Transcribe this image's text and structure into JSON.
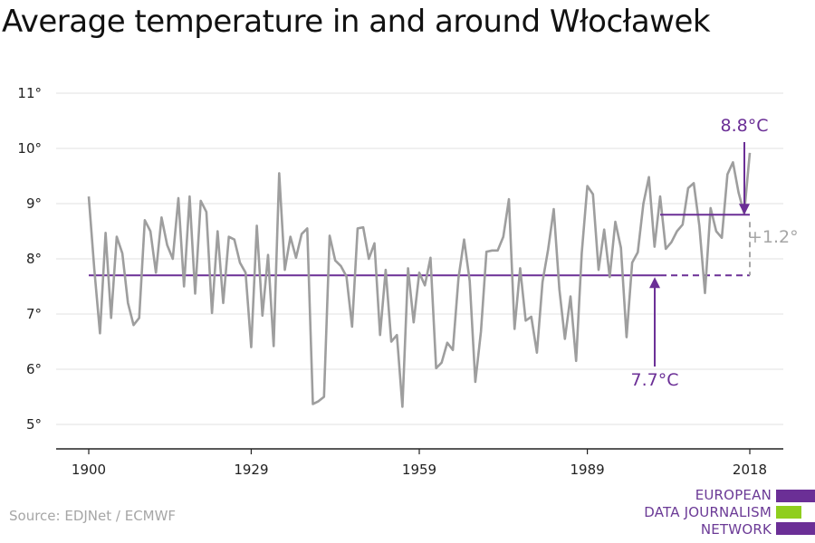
{
  "title": "Average temperature in and around Włocławek",
  "source": "Source: EDJNet / ECMWF",
  "logo": {
    "lines": [
      "EUROPEAN",
      "DATA JOURNALISM",
      "NETWORK"
    ],
    "colors": [
      "#6b2f96",
      "#8fce1e",
      "#6b2f96"
    ]
  },
  "colors": {
    "series": "#9e9e9e",
    "baseline": "#6b2f96",
    "annotation": "#6b2f96",
    "diff": "#a6a6a6",
    "grid": "#e0e0e0",
    "axis": "#222222"
  },
  "chart_data": {
    "type": "line",
    "title": "Average temperature in and around Włocławek",
    "x_ticks": [
      1900,
      1929,
      1959,
      1989,
      2018
    ],
    "y_ticks": [
      5,
      6,
      7,
      8,
      9,
      10,
      11
    ],
    "y_tick_labels": [
      "5°",
      "6°",
      "7°",
      "8°",
      "9°",
      "10°",
      "11°"
    ],
    "xlim": [
      1900,
      2018
    ],
    "ylim": [
      4.5,
      11
    ],
    "grid": true,
    "series": [
      {
        "x": [
          1900,
          1901,
          1902,
          1903,
          1904,
          1905,
          1906,
          1907,
          1908,
          1909,
          1910,
          1911,
          1912,
          1913,
          1914,
          1915,
          1916,
          1917,
          1918,
          1919,
          1920,
          1921,
          1922,
          1923,
          1924,
          1925,
          1926,
          1927,
          1928,
          1929,
          1930,
          1931,
          1932,
          1933,
          1934,
          1935,
          1936,
          1937,
          1938,
          1939,
          1940,
          1941,
          1942,
          1943,
          1944,
          1945,
          1946,
          1947,
          1948,
          1949,
          1950,
          1951,
          1952,
          1953,
          1954,
          1955,
          1956,
          1957,
          1958,
          1959,
          1960,
          1961,
          1962,
          1963,
          1964,
          1965,
          1966,
          1967,
          1968,
          1969,
          1970,
          1971,
          1972,
          1973,
          1974,
          1975,
          1976,
          1977,
          1978,
          1979,
          1980,
          1981,
          1982,
          1983,
          1984,
          1985,
          1986,
          1987,
          1988,
          1989,
          1990,
          1991,
          1992,
          1993,
          1994,
          1995,
          1996,
          1997,
          1998,
          1999,
          2000,
          2001,
          2002,
          2003,
          2004,
          2005,
          2006,
          2007,
          2008,
          2009,
          2010,
          2011,
          2012,
          2013,
          2014,
          2015,
          2016,
          2017,
          2018
        ],
        "values": [
          9.13,
          7.8,
          6.65,
          8.47,
          6.93,
          8.4,
          8.1,
          7.2,
          6.8,
          6.93,
          8.7,
          8.5,
          7.75,
          8.75,
          8.25,
          8.0,
          9.1,
          7.5,
          9.13,
          7.37,
          9.05,
          8.85,
          7.02,
          8.5,
          7.2,
          8.4,
          8.35,
          7.93,
          7.75,
          6.4,
          8.6,
          6.97,
          8.07,
          6.42,
          9.55,
          7.8,
          8.4,
          8.02,
          8.45,
          8.55,
          5.37,
          5.42,
          5.5,
          8.42,
          7.97,
          7.87,
          7.68,
          6.77,
          8.55,
          8.57,
          8.0,
          8.28,
          6.62,
          7.8,
          6.5,
          6.62,
          5.32,
          7.83,
          6.85,
          7.75,
          7.52,
          8.02,
          6.02,
          6.12,
          6.48,
          6.35,
          7.65,
          8.35,
          7.6,
          5.77,
          6.68,
          8.13,
          8.15,
          8.15,
          8.4,
          9.08,
          6.73,
          7.83,
          6.88,
          6.95,
          6.3,
          7.58,
          8.17,
          8.9,
          7.45,
          6.55,
          7.32,
          6.15,
          8.1,
          9.32,
          9.17,
          7.8,
          8.53,
          7.67,
          8.67,
          8.2,
          6.58,
          7.93,
          8.12,
          9.0,
          9.48,
          8.22,
          9.13,
          8.18,
          8.3,
          8.5,
          8.62,
          9.28,
          9.37,
          8.6,
          7.38,
          8.92,
          8.5,
          8.38,
          9.53,
          9.75,
          9.2,
          8.82,
          9.92
        ]
      }
    ],
    "annotations": {
      "baseline_value": 7.7,
      "baseline_label": "7.7°C",
      "baseline_from": 1900,
      "baseline_solid_to": 2002,
      "recent_value": 8.8,
      "recent_label": "8.8°C",
      "recent_from": 2002,
      "recent_to": 2018,
      "difference_label": "+1.2°"
    }
  }
}
